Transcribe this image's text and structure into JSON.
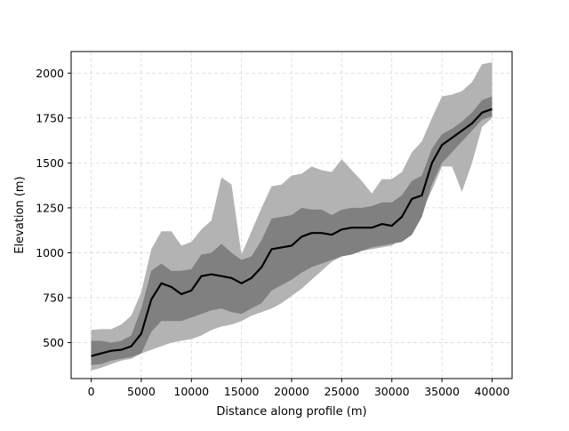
{
  "chart_data": {
    "type": "area",
    "title": "",
    "xlabel": "Distance along profile (m)",
    "ylabel": "Elevation (m)",
    "xlim": [
      -2000,
      42000
    ],
    "ylim": [
      300,
      2120
    ],
    "xticks": [
      0,
      5000,
      10000,
      15000,
      20000,
      25000,
      30000,
      35000,
      40000
    ],
    "yticks": [
      500,
      750,
      1000,
      1250,
      1500,
      1750,
      2000
    ],
    "grid": true,
    "legend": "none",
    "colors": {
      "outer_band": "#b3b3b3",
      "inner_band": "#808080",
      "median_line": "#000000",
      "grid": "#d9d9d9",
      "axis": "#000000"
    },
    "x": [
      0,
      1000,
      2000,
      3000,
      4000,
      5000,
      6000,
      7000,
      8000,
      9000,
      10000,
      11000,
      12000,
      13000,
      14000,
      15000,
      16000,
      17000,
      18000,
      19000,
      20000,
      21000,
      22000,
      23000,
      24000,
      25000,
      26000,
      27000,
      28000,
      29000,
      30000,
      31000,
      32000,
      33000,
      34000,
      35000,
      36000,
      37000,
      38000,
      39000,
      40000
    ],
    "series": [
      {
        "role": "median",
        "values": [
          425,
          440,
          455,
          460,
          480,
          550,
          740,
          830,
          810,
          770,
          790,
          870,
          880,
          870,
          860,
          830,
          860,
          920,
          1020,
          1030,
          1040,
          1090,
          1110,
          1110,
          1100,
          1130,
          1140,
          1140,
          1140,
          1160,
          1150,
          1200,
          1300,
          1320,
          1500,
          1600,
          1640,
          1680,
          1720,
          1780,
          1800
        ]
      },
      {
        "role": "inner-band",
        "lower": [
          375,
          380,
          400,
          410,
          420,
          440,
          560,
          620,
          620,
          620,
          640,
          660,
          680,
          690,
          670,
          660,
          690,
          720,
          790,
          820,
          850,
          890,
          920,
          940,
          960,
          980,
          990,
          1010,
          1030,
          1040,
          1050,
          1060,
          1100,
          1200,
          1380,
          1500,
          1560,
          1620,
          1680,
          1740,
          1760
        ],
        "upper": [
          510,
          510,
          500,
          510,
          540,
          690,
          900,
          940,
          900,
          900,
          910,
          990,
          1000,
          1050,
          1000,
          960,
          980,
          1070,
          1190,
          1200,
          1210,
          1250,
          1240,
          1240,
          1210,
          1240,
          1250,
          1250,
          1260,
          1280,
          1280,
          1320,
          1400,
          1430,
          1580,
          1660,
          1690,
          1730,
          1780,
          1850,
          1870
        ]
      },
      {
        "role": "outer-band",
        "lower": [
          345,
          360,
          380,
          400,
          410,
          440,
          460,
          480,
          500,
          510,
          520,
          540,
          570,
          590,
          600,
          620,
          650,
          670,
          690,
          720,
          760,
          800,
          850,
          900,
          950,
          980,
          1000,
          1010,
          1020,
          1030,
          1040,
          1080,
          1140,
          1230,
          1350,
          1480,
          1480,
          1340,
          1500,
          1700,
          1750
        ],
        "upper": [
          570,
          575,
          575,
          600,
          650,
          780,
          1020,
          1120,
          1120,
          1040,
          1060,
          1130,
          1180,
          1420,
          1380,
          990,
          1120,
          1250,
          1370,
          1380,
          1430,
          1440,
          1480,
          1460,
          1450,
          1520,
          1460,
          1400,
          1330,
          1410,
          1410,
          1450,
          1560,
          1620,
          1750,
          1870,
          1880,
          1900,
          1950,
          2050,
          2060
        ]
      }
    ]
  }
}
